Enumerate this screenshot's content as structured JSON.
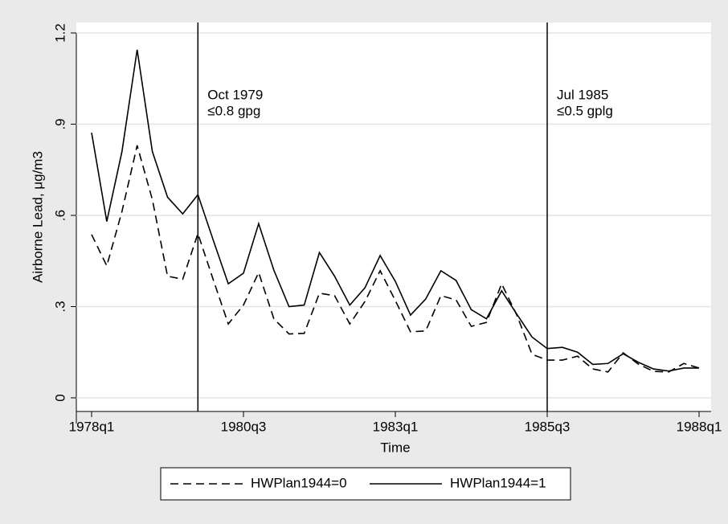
{
  "chart_data": {
    "type": "line",
    "y_label": "Airborne Lead, μg/m3",
    "x_label": "Time",
    "x": [
      "1978q1",
      "1978q2",
      "1978q3",
      "1978q4",
      "1979q1",
      "1979q2",
      "1979q3",
      "1979q4",
      "1980q1",
      "1980q2",
      "1980q3",
      "1980q4",
      "1981q1",
      "1981q2",
      "1981q3",
      "1981q4",
      "1982q1",
      "1982q2",
      "1982q3",
      "1982q4",
      "1983q1",
      "1983q2",
      "1983q3",
      "1983q4",
      "1984q1",
      "1984q2",
      "1984q3",
      "1984q4",
      "1985q1",
      "1985q2",
      "1985q3",
      "1985q4",
      "1986q1",
      "1986q2",
      "1986q3",
      "1986q4",
      "1987q1",
      "1987q2",
      "1987q3",
      "1987q4",
      "1988q1"
    ],
    "series": [
      {
        "name": "HWPlan1944=0",
        "color": "#000000",
        "dash": true,
        "values": [
          0.537,
          0.434,
          0.613,
          0.83,
          0.652,
          0.4,
          0.39,
          0.54,
          0.39,
          0.243,
          0.305,
          0.412,
          0.26,
          0.21,
          0.212,
          0.344,
          0.336,
          0.243,
          0.317,
          0.418,
          0.32,
          0.217,
          0.22,
          0.336,
          0.322,
          0.235,
          0.248,
          0.375,
          0.272,
          0.143,
          0.124,
          0.124,
          0.137,
          0.095,
          0.085,
          0.148,
          0.111,
          0.087,
          0.085,
          0.113,
          0.098
        ]
      },
      {
        "name": "HWPlan1944=1",
        "color": "#000000",
        "dash": false,
        "values": [
          0.872,
          0.58,
          0.81,
          1.145,
          0.81,
          0.66,
          0.605,
          0.668,
          0.52,
          0.375,
          0.41,
          0.573,
          0.42,
          0.3,
          0.305,
          0.478,
          0.4,
          0.305,
          0.362,
          0.468,
          0.383,
          0.272,
          0.325,
          0.418,
          0.386,
          0.29,
          0.26,
          0.352,
          0.275,
          0.2,
          0.162,
          0.166,
          0.15,
          0.11,
          0.113,
          0.145,
          0.117,
          0.095,
          0.088,
          0.098,
          0.098
        ]
      }
    ],
    "xlim": [
      "1978q1",
      "1988q1"
    ],
    "xticks": [
      "1978q1",
      "1980q3",
      "1983q1",
      "1985q3",
      "1988q1"
    ],
    "ylim": [
      -0.04,
      1.2
    ],
    "yticks": [
      0,
      {
        "value": 0.3,
        "label": ".3"
      },
      {
        "value": 0.6,
        "label": ".6"
      },
      {
        "value": 0.9,
        "label": ".9"
      },
      1.2
    ],
    "grid": true,
    "legend": "bottom",
    "vlines": [
      {
        "x": "1979q4",
        "label": [
          "Oct 1979",
          "≤0.8 gpg"
        ]
      },
      {
        "x": "1985q3",
        "label": [
          "Jul 1985",
          "≤0.5 gplg"
        ]
      }
    ]
  }
}
